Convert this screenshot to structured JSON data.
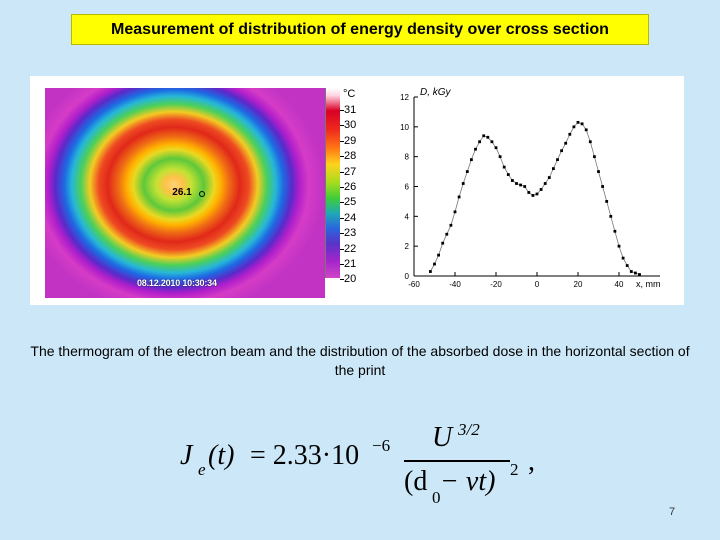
{
  "slide": {
    "title": "Measurement of distribution of energy density over cross section",
    "caption": "The thermogram of the electron beam and the distribution of the absorbed dose in the horizontal section of the print",
    "page_number": "7"
  },
  "thermogram": {
    "spot_value": "26.1",
    "timestamp": "08.12.2010 10:30:34",
    "colorbar_unit": "°C",
    "colorbar_ticks": [
      "31",
      "30",
      "29",
      "28",
      "27",
      "26",
      "25",
      "24",
      "23",
      "22",
      "21",
      "20"
    ]
  },
  "formula": {
    "lhs_symbol": "J",
    "lhs_sub": "e",
    "lhs_arg": "(t)",
    "equals_coef": "= 2.33·10",
    "exponent": "−6",
    "numerator": "U",
    "numerator_exp": "3/2",
    "denominator": "(d",
    "denominator_sub": "0",
    "denominator_rest": " − vt)",
    "denominator_exp": "2",
    "trailing": ","
  },
  "chart_data": {
    "type": "scatter",
    "xlabel": "x, mm",
    "ylabel": "D, kGy",
    "xlim": [
      -60,
      60
    ],
    "ylim": [
      0,
      12
    ],
    "x_ticks": [
      "-60",
      "-40",
      "-20",
      "0",
      "20",
      "40"
    ],
    "y_ticks": [
      "0",
      "2",
      "4",
      "6",
      "8",
      "10",
      "12"
    ],
    "x": [
      -52,
      -50,
      -48,
      -46,
      -44,
      -42,
      -40,
      -38,
      -36,
      -34,
      -32,
      -30,
      -28,
      -26,
      -24,
      -22,
      -20,
      -18,
      -16,
      -14,
      -12,
      -10,
      -8,
      -6,
      -4,
      -2,
      0,
      2,
      4,
      6,
      8,
      10,
      12,
      14,
      16,
      18,
      20,
      22,
      24,
      26,
      28,
      30,
      32,
      34,
      36,
      38,
      40,
      42,
      44,
      46,
      48,
      50
    ],
    "y": [
      0.3,
      0.8,
      1.4,
      2.2,
      2.8,
      3.4,
      4.3,
      5.3,
      6.2,
      7.0,
      7.8,
      8.5,
      9.0,
      9.4,
      9.3,
      9.0,
      8.6,
      8.0,
      7.3,
      6.8,
      6.4,
      6.2,
      6.1,
      6.0,
      5.6,
      5.4,
      5.5,
      5.8,
      6.2,
      6.6,
      7.2,
      7.8,
      8.4,
      8.9,
      9.5,
      10.0,
      10.3,
      10.2,
      9.8,
      9.0,
      8.0,
      7.0,
      6.0,
      5.0,
      4.0,
      3.0,
      2.0,
      1.2,
      0.7,
      0.3,
      0.2,
      0.1
    ]
  }
}
